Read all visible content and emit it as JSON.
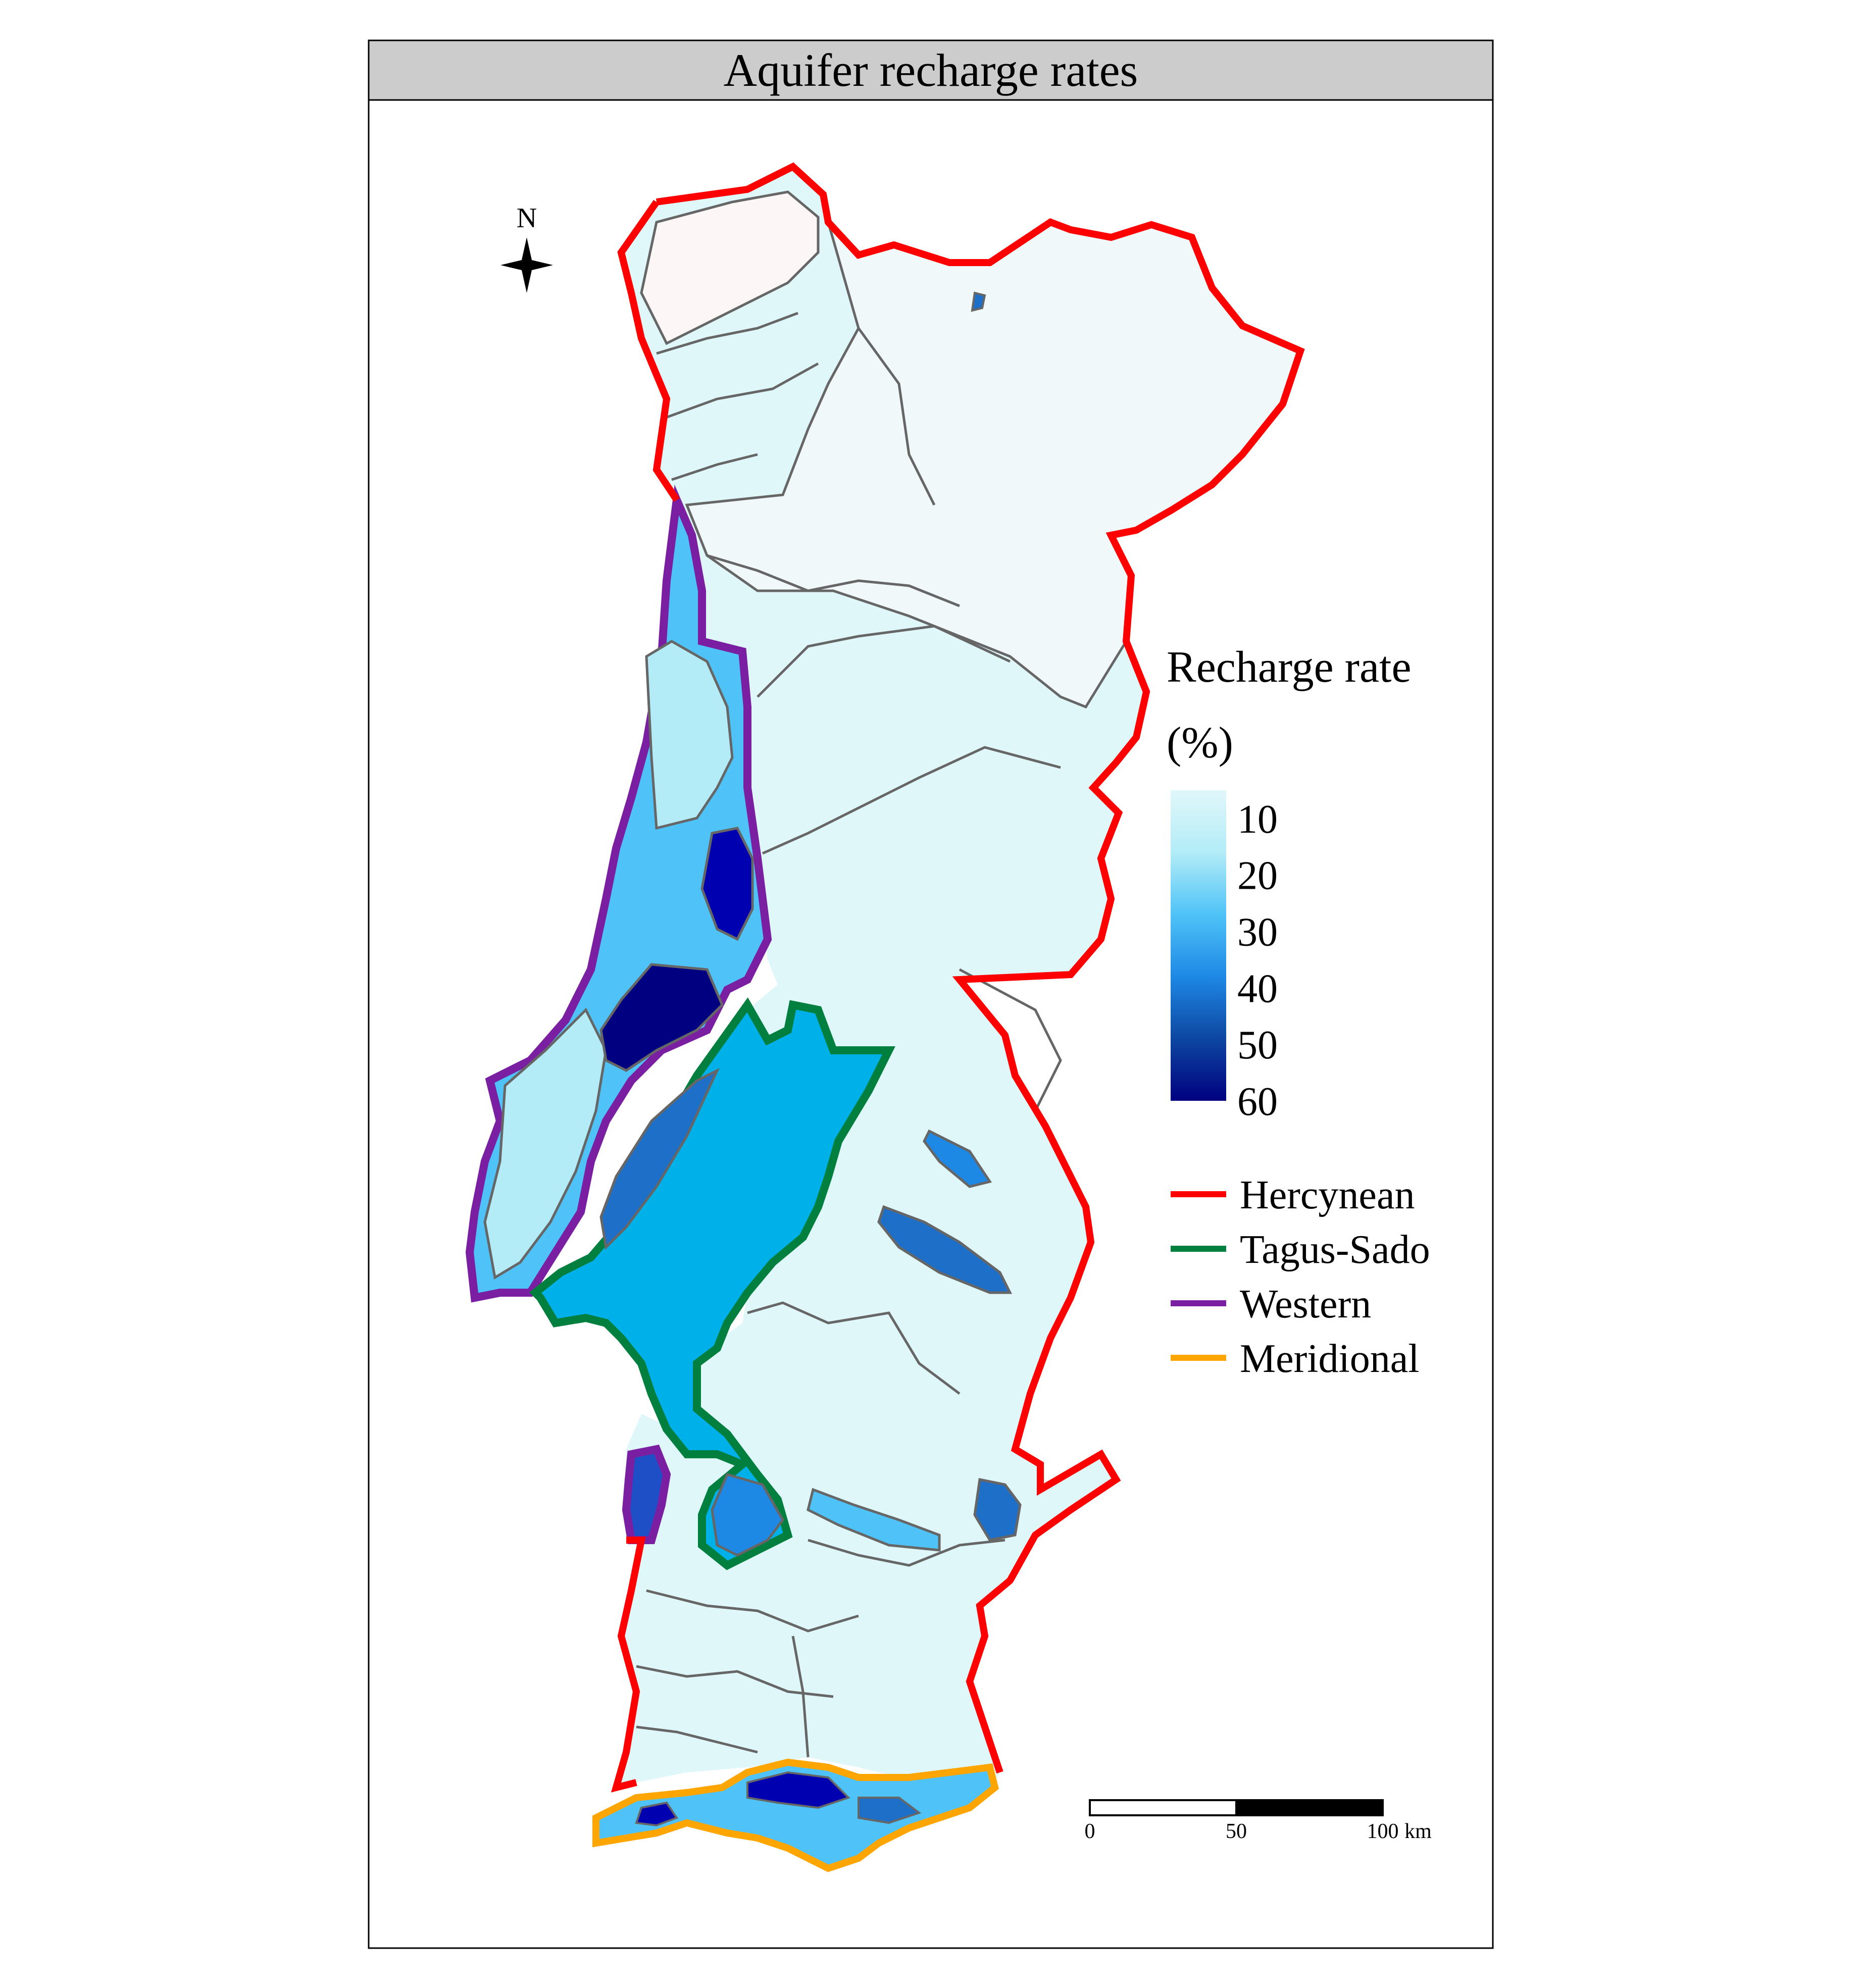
{
  "panel": {
    "title": "Aquifer recharge rates"
  },
  "north_arrow": {
    "label": "N"
  },
  "colorbar": {
    "title_line1": "Recharge rate",
    "title_line2": "(%)",
    "ticks": [
      "10",
      "20",
      "30",
      "40",
      "50",
      "60"
    ],
    "colors": [
      "#e0f7fa",
      "#b3ecf7",
      "#4fc3f7",
      "#1e88e5",
      "#0d47a1",
      "#000080"
    ],
    "range": [
      5,
      60
    ]
  },
  "legend": {
    "items": [
      {
        "label": "Hercynean",
        "color": "#ff0000"
      },
      {
        "label": "Tagus-Sado",
        "color": "#007f3f"
      },
      {
        "label": "Western",
        "color": "#7b1fa2"
      },
      {
        "label": "Meridional",
        "color": "#ffa500"
      }
    ]
  },
  "scale_bar": {
    "labels": [
      "0",
      "50",
      "100"
    ],
    "unit": "km"
  }
}
